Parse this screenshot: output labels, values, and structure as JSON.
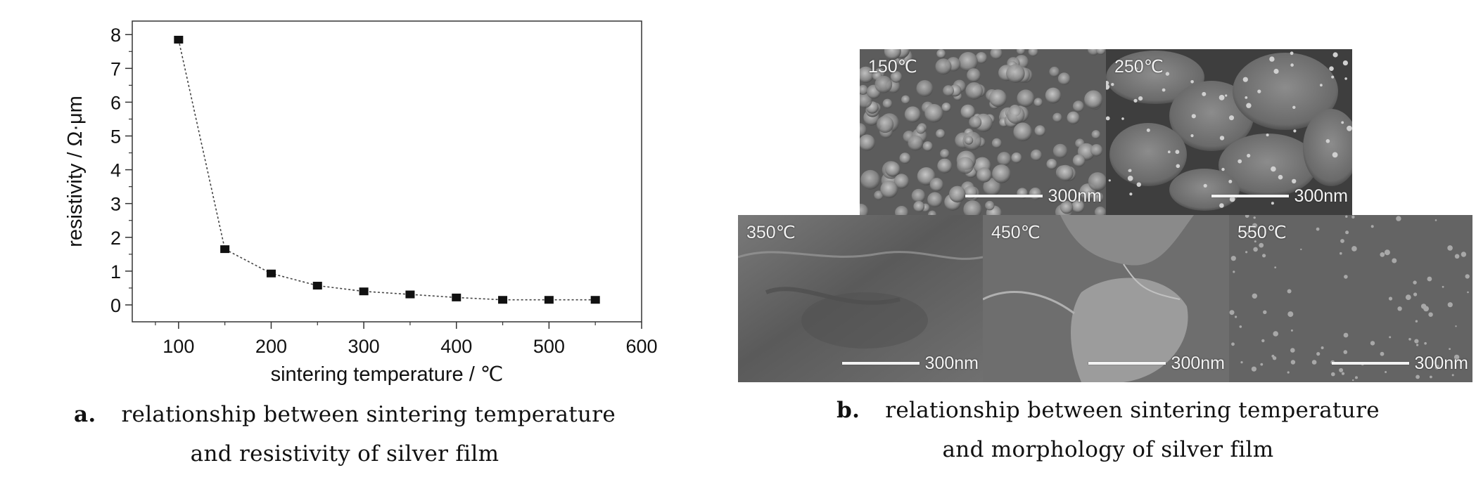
{
  "chart_data": {
    "type": "scatter",
    "title": "",
    "xlabel": "sintering temperature / ℃",
    "ylabel": "resistivity / Ω·μm",
    "xlim": [
      50,
      600
    ],
    "ylim": [
      -0.5,
      8.4
    ],
    "xticks": [
      100,
      200,
      300,
      400,
      500,
      600
    ],
    "yticks": [
      0,
      1,
      2,
      3,
      4,
      5,
      6,
      7,
      8
    ],
    "grid": false,
    "x": [
      100,
      150,
      200,
      250,
      300,
      350,
      400,
      450,
      500,
      550
    ],
    "y": [
      7.85,
      1.65,
      0.93,
      0.57,
      0.4,
      0.31,
      0.22,
      0.15,
      0.15,
      0.15
    ]
  },
  "captions": {
    "a": {
      "tag": "a.",
      "line1": "relationship between sintering temperature",
      "line2": "and resistivity of silver film"
    },
    "b": {
      "tag": "b.",
      "line1": "relationship between sintering temperature",
      "line2": "and morphology of silver film"
    }
  },
  "sem_images": [
    {
      "label": "150℃",
      "scale": "300nm"
    },
    {
      "label": "250℃",
      "scale": "300nm"
    },
    {
      "label": "350℃",
      "scale": "300nm"
    },
    {
      "label": "450℃",
      "scale": "300nm"
    },
    {
      "label": "550℃",
      "scale": "300nm"
    }
  ]
}
